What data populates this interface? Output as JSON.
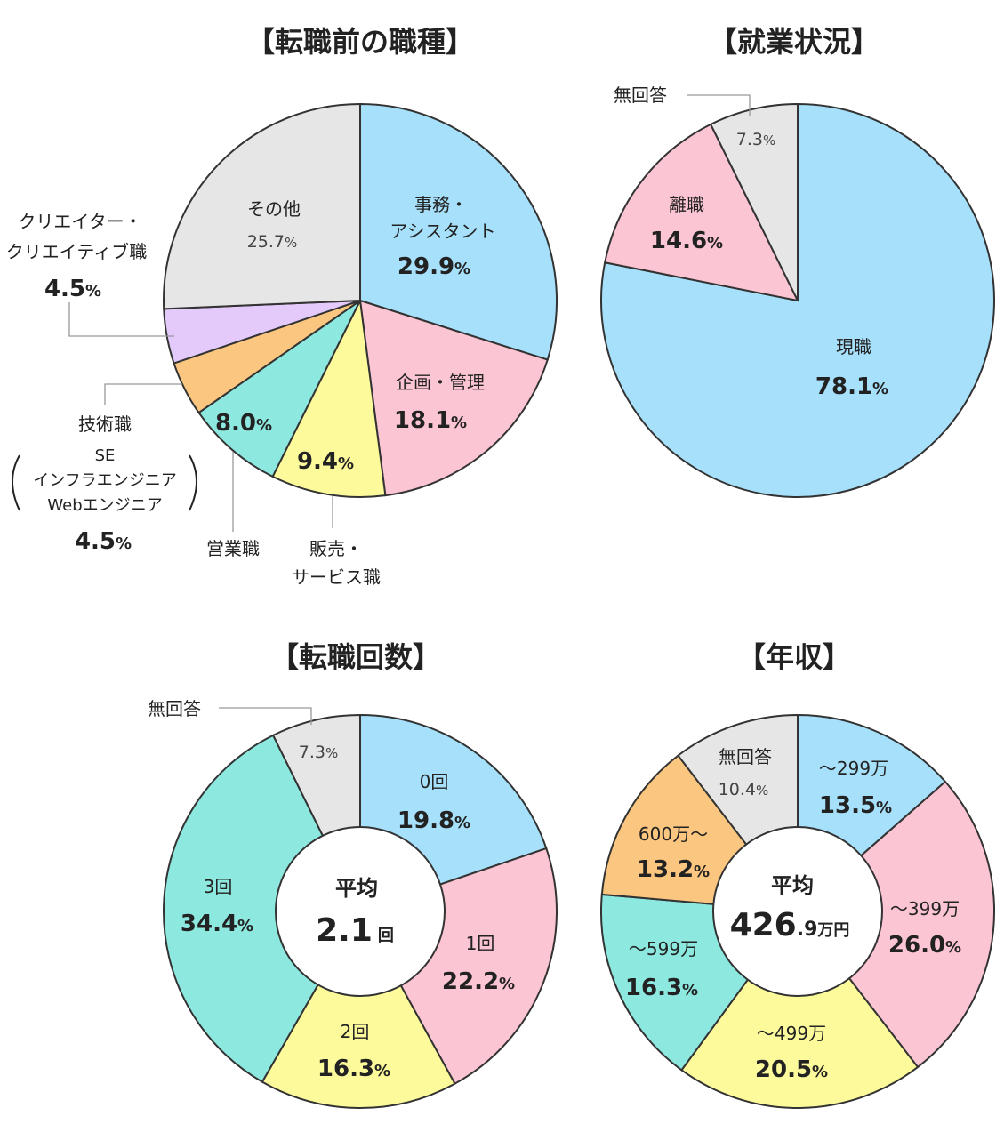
{
  "colors": {
    "blue": "#a7e0fb",
    "pink": "#fcc5d3",
    "yellow": "#fdfa9c",
    "teal": "#8de8df",
    "orange": "#fbc67f",
    "purple": "#e4c9fb",
    "gray": "#e6e6e6"
  },
  "chart_data": [
    {
      "type": "pie",
      "title": "【転職前の職種】",
      "slices": [
        {
          "name": "事務・アシスタント",
          "value": 29.9,
          "label_lines": [
            "事務・",
            "アシスタント"
          ],
          "pct": "29.9",
          "color": "blue"
        },
        {
          "name": "企画・管理",
          "value": 18.1,
          "label_lines": [
            "企画・管理"
          ],
          "pct": "18.1",
          "color": "pink"
        },
        {
          "name": "販売・サービス職",
          "value": 9.4,
          "label_lines": [
            "販売・",
            "サービス職"
          ],
          "pct": "9.4",
          "color": "yellow"
        },
        {
          "name": "営業職",
          "value": 8.0,
          "label_lines": [
            "営業職"
          ],
          "pct": "8.0",
          "color": "teal"
        },
        {
          "name": "技術職 SE インフラエンジニア Webエンジニア",
          "value": 4.5,
          "label_lines": [
            "技術職",
            "SE",
            "インフラエンジニア",
            "Webエンジニア"
          ],
          "pct": "4.5",
          "color": "orange"
        },
        {
          "name": "クリエイター・クリエイティブ職",
          "value": 4.5,
          "label_lines": [
            "クリエイター・",
            "クリエイティブ職"
          ],
          "pct": "4.5",
          "color": "purple"
        },
        {
          "name": "その他",
          "value": 25.7,
          "label_lines": [
            "その他"
          ],
          "pct": "25.7",
          "color": "gray"
        }
      ]
    },
    {
      "type": "pie",
      "title": "【就業状況】",
      "slices": [
        {
          "name": "現職",
          "value": 78.1,
          "label_lines": [
            "現職"
          ],
          "pct": "78.1",
          "color": "blue"
        },
        {
          "name": "離職",
          "value": 14.6,
          "label_lines": [
            "離職"
          ],
          "pct": "14.6",
          "color": "pink"
        },
        {
          "name": "無回答",
          "value": 7.3,
          "label_lines": [
            "無回答"
          ],
          "pct": "7.3",
          "color": "gray"
        }
      ]
    },
    {
      "type": "pie",
      "donut": true,
      "title": "【転職回数】",
      "center": {
        "title": "平均",
        "value": "2.1",
        "unit": "回"
      },
      "slices": [
        {
          "name": "0回",
          "value": 19.8,
          "label_lines": [
            "0回"
          ],
          "pct": "19.8",
          "color": "blue"
        },
        {
          "name": "1回",
          "value": 22.2,
          "label_lines": [
            "1回"
          ],
          "pct": "22.2",
          "color": "pink"
        },
        {
          "name": "2回",
          "value": 16.3,
          "label_lines": [
            "2回"
          ],
          "pct": "16.3",
          "color": "yellow"
        },
        {
          "name": "3回",
          "value": 34.4,
          "label_lines": [
            "3回"
          ],
          "pct": "34.4",
          "color": "teal"
        },
        {
          "name": "無回答",
          "value": 7.3,
          "label_lines": [
            "無回答"
          ],
          "pct": "7.3",
          "color": "gray"
        }
      ]
    },
    {
      "type": "pie",
      "donut": true,
      "title": "【年収】",
      "center": {
        "title": "平均",
        "value": "426",
        "value_small": ".9",
        "unit": "万円"
      },
      "slices": [
        {
          "name": "〜299万",
          "value": 13.5,
          "label_lines": [
            "〜299万"
          ],
          "pct": "13.5",
          "color": "blue"
        },
        {
          "name": "〜399万",
          "value": 26.0,
          "label_lines": [
            "〜399万"
          ],
          "pct": "26.0",
          "color": "pink"
        },
        {
          "name": "〜499万",
          "value": 20.5,
          "label_lines": [
            "〜499万"
          ],
          "pct": "20.5",
          "color": "yellow"
        },
        {
          "name": "〜599万",
          "value": 16.3,
          "label_lines": [
            "〜599万"
          ],
          "pct": "16.3",
          "color": "teal"
        },
        {
          "name": "600万〜",
          "value": 13.2,
          "label_lines": [
            "600万〜"
          ],
          "pct": "13.2",
          "color": "orange"
        },
        {
          "name": "無回答",
          "value": 10.4,
          "label_lines": [
            "無回答"
          ],
          "pct": "10.4",
          "color": "gray"
        }
      ]
    }
  ]
}
